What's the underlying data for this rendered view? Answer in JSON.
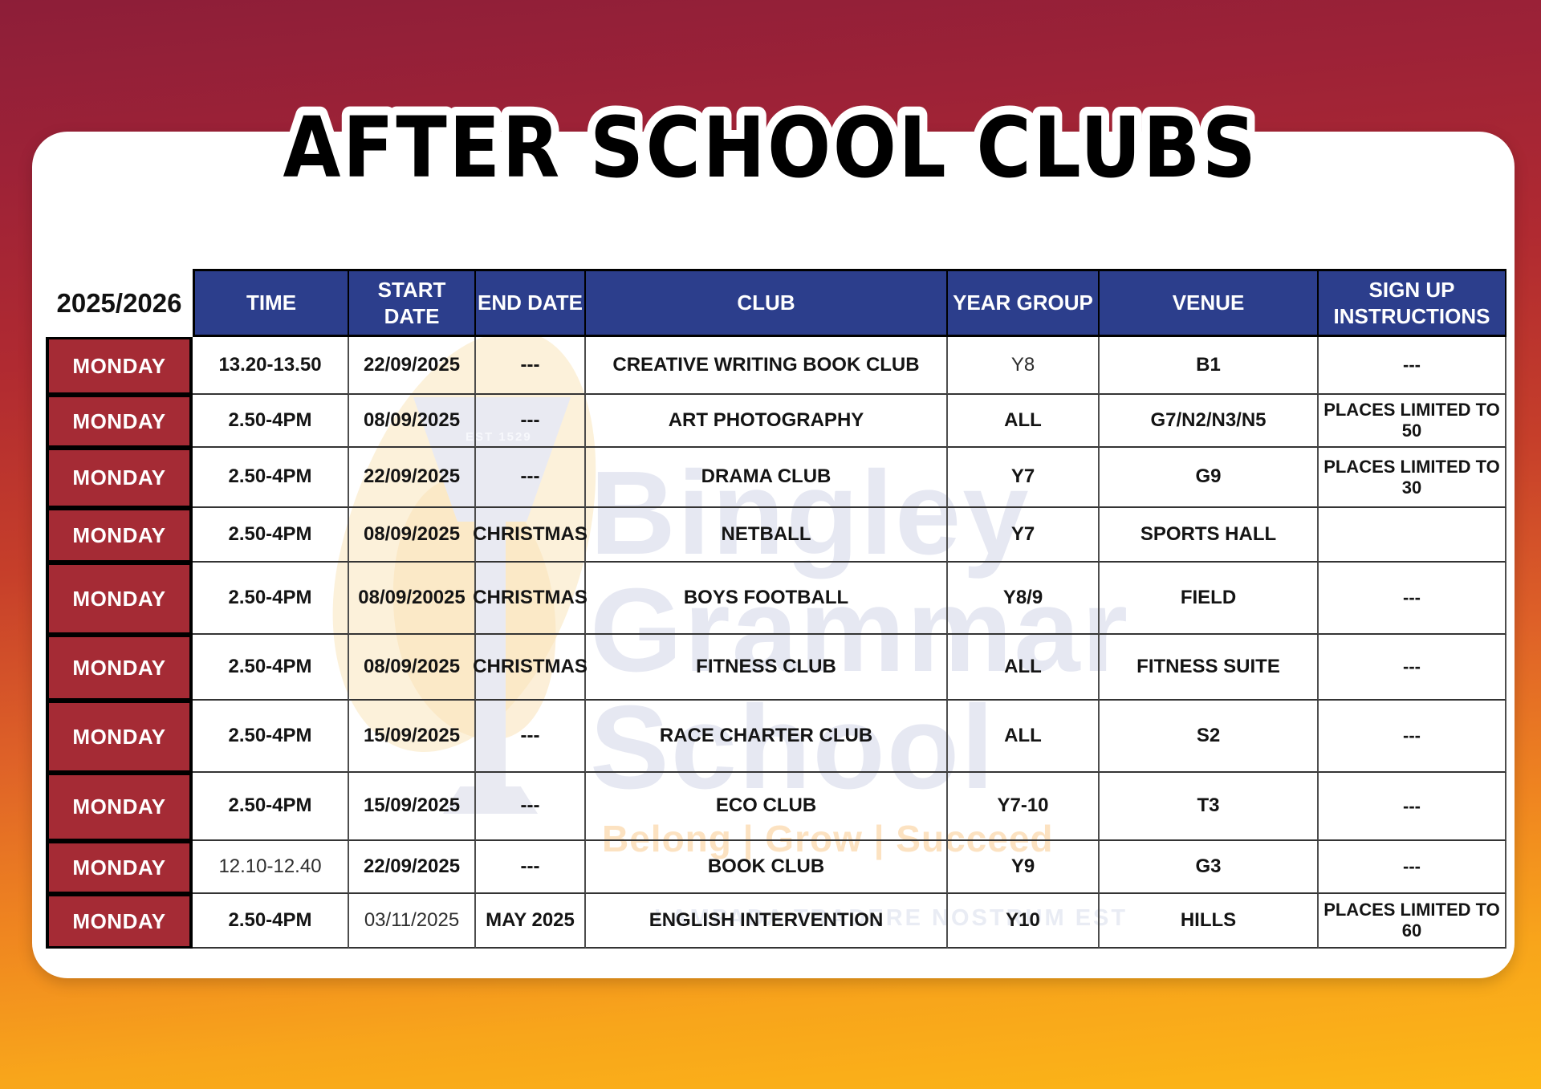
{
  "page": {
    "title": "AFTER SCHOOL CLUBS",
    "year_label": "2025/2026"
  },
  "colors": {
    "header_blue": "#2c3e8c",
    "day_red": "#a52b35",
    "bg_top": "#8d1e38",
    "bg_bottom": "#fcb717",
    "card": "#ffffff"
  },
  "table": {
    "columns": [
      "TIME",
      "START DATE",
      "END DATE",
      "CLUB",
      "YEAR GROUP",
      "VENUE",
      "SIGN UP INSTRUCTIONS"
    ],
    "rows": [
      {
        "day": "MONDAY",
        "time": "13.20-13.50",
        "start_date": "22/09/2025",
        "end_date": "---",
        "club": "CREATIVE WRITING BOOK CLUB",
        "year_group": "Y8",
        "venue": "B1",
        "sign_up": "---",
        "muted": [
          "year_group"
        ]
      },
      {
        "day": "MONDAY",
        "time": "2.50-4PM",
        "start_date": "08/09/2025",
        "end_date": "---",
        "club": "ART PHOTOGRAPHY",
        "year_group": "ALL",
        "venue": "G7/N2/N3/N5",
        "sign_up": "PLACES LIMITED TO 50",
        "muted": []
      },
      {
        "day": "MONDAY",
        "time": "2.50-4PM",
        "start_date": "22/09/2025",
        "end_date": "---",
        "club": "DRAMA CLUB",
        "year_group": "Y7",
        "venue": "G9",
        "sign_up": "PLACES LIMITED TO 30",
        "muted": []
      },
      {
        "day": "MONDAY",
        "time": "2.50-4PM",
        "start_date": "08/09/2025",
        "end_date": "CHRISTMAS",
        "club": "NETBALL",
        "year_group": "Y7",
        "venue": "SPORTS HALL",
        "sign_up": "",
        "muted": []
      },
      {
        "day": "MONDAY",
        "time": "2.50-4PM",
        "start_date": "08/09/20025",
        "end_date": "CHRISTMAS",
        "club": "BOYS FOOTBALL",
        "year_group": "Y8/9",
        "venue": "FIELD",
        "sign_up": "---",
        "muted": []
      },
      {
        "day": "MONDAY",
        "time": "2.50-4PM",
        "start_date": "08/09/2025",
        "end_date": "CHRISTMAS",
        "club": "FITNESS CLUB",
        "year_group": "ALL",
        "venue": "FITNESS SUITE",
        "sign_up": "---",
        "muted": []
      },
      {
        "day": "MONDAY",
        "time": "2.50-4PM",
        "start_date": "15/09/2025",
        "end_date": "---",
        "club": "RACE CHARTER CLUB",
        "year_group": "ALL",
        "venue": "S2",
        "sign_up": "---",
        "muted": []
      },
      {
        "day": "MONDAY",
        "time": "2.50-4PM",
        "start_date": "15/09/2025",
        "end_date": "---",
        "club": "ECO CLUB",
        "year_group": "Y7-10",
        "venue": "T3",
        "sign_up": "---",
        "muted": []
      },
      {
        "day": "MONDAY",
        "time": "12.10-12.40",
        "start_date": "22/09/2025",
        "end_date": "---",
        "club": "BOOK CLUB",
        "year_group": "Y9",
        "venue": "G3",
        "sign_up": "---",
        "muted": [
          "time"
        ]
      },
      {
        "day": "MONDAY",
        "time": "2.50-4PM",
        "start_date": "03/11/2025",
        "end_date": "MAY 2025",
        "club": "ENGLISH INTERVENTION",
        "year_group": "Y10",
        "venue": "HILLS",
        "sign_up": "PLACES LIMITED TO 60",
        "muted": [
          "start_date"
        ]
      }
    ]
  },
  "watermark": {
    "line1": "Bingley",
    "line2": "Grammar",
    "line3": "School",
    "motto": "Belong | Grow | Succeed",
    "motto_latin": "LAMPADA TRADERE NOSTRUM EST",
    "est": "EST 1529"
  }
}
